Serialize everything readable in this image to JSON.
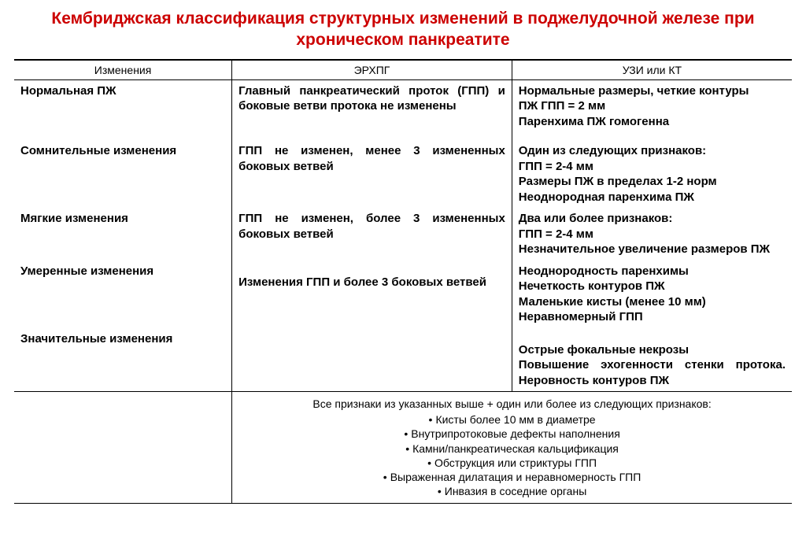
{
  "title": "Кембриджская классификация структурных изменений в поджелудочной железе при хроническом панкреатите",
  "headers": {
    "col1": "Изменения",
    "col2": "ЭРХПГ",
    "col3": "УЗИ или  КТ"
  },
  "rows": {
    "r1": {
      "label": "Нормальная ПЖ",
      "ercp": "Главный панкреатический проток (ГПП) и боковые ветви протока не изменены",
      "us1": "Нормальные размеры, четкие контуры",
      "us2": "ПЖ ГПП = 2 мм",
      "us3": "Паренхима ПЖ гомогенна"
    },
    "r2": {
      "label": "Сомнительные изменения",
      "ercp": "ГПП не изменен, менее 3 измененных боковых ветвей",
      "us1": "Один из следующих признаков:",
      "us2": "ГПП = 2-4 мм",
      "us3": "Размеры ПЖ в пределах 1-2 норм",
      "us4": "Неоднородная паренхима ПЖ"
    },
    "r3": {
      "label": "Мягкие изменения",
      "ercp": "ГПП не изменен, более 3 измененных боковых ветвей",
      "us1": "Два или более признаков:",
      "us2": "ГПП = 2-4 мм",
      "us3": "Незначительное увеличение размеров ПЖ"
    },
    "r4": {
      "label": "Умеренные изменения",
      "ercp": "Изменения ГПП и более 3  боковых ветвей",
      "us1": "Неоднородность паренхимы",
      "us2": "Нечеткость контуров ПЖ",
      "us3": "Маленькие кисты (менее 10 мм)",
      "us4": "Неравномерный ГПП"
    },
    "r5": {
      "label": "Значительные изменения",
      "us1": "Острые фокальные некрозы",
      "us2": "Повышение эхогенности стенки протока. Неровность контуров ПЖ"
    }
  },
  "bottom": {
    "intro": "Все признаки  из указанных выше + один или более из следующих признаков:",
    "b1": "Кисты более 10 мм в диаметре",
    "b2": "Внутрипротоковые дефекты наполнения",
    "b3": "Камни/панкреатическая кальцификация",
    "b4": "Обструкция или стриктуры ГПП",
    "b5": "Выраженная дилатация и неравномерность ГПП",
    "b6": "Инвазия в соседние органы"
  },
  "colors": {
    "title": "#cc0000",
    "text": "#000000",
    "border": "#000000",
    "background": "#ffffff"
  }
}
